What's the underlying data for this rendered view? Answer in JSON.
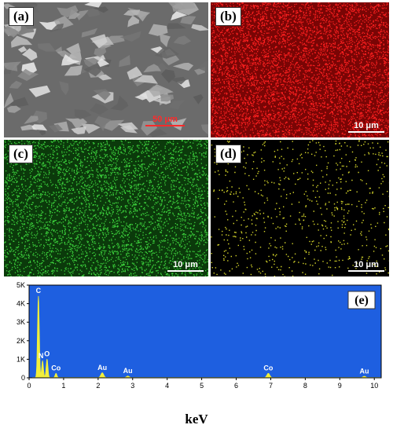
{
  "panels": [
    {
      "tag": "(a)",
      "scale_label": "50 μm",
      "color": "#6b6b6b",
      "dot_color": "#d8d8d8"
    },
    {
      "tag": "(b)",
      "scale_label": "10 μm",
      "color": "#7a0505",
      "dot_color": "#ff2020"
    },
    {
      "tag": "(c)",
      "scale_label": "10 μm",
      "color": "#0b3a0b",
      "dot_color": "#3cd23c"
    },
    {
      "tag": "(d)",
      "scale_label": "10 μm",
      "color": "#000000",
      "dot_color": "#d4d42a"
    }
  ],
  "spectrum": {
    "tag": "(e)",
    "background": "#1e5fe0",
    "bar_color": "#f2ef3a"
  },
  "chart_data": {
    "type": "line",
    "title": "",
    "xlabel": "keV",
    "ylabel": "",
    "xlim": [
      0,
      10.2
    ],
    "ylim": [
      0,
      5000
    ],
    "x_ticks": [
      "0",
      "1",
      "2",
      "3",
      "4",
      "5",
      "6",
      "7",
      "8",
      "9",
      "10"
    ],
    "y_ticks": [
      "0",
      "1K",
      "2K",
      "3K",
      "4K",
      "5K"
    ],
    "peaks": [
      {
        "label": "C",
        "x": 0.27,
        "y": 4400
      },
      {
        "label": "N",
        "x": 0.39,
        "y": 900
      },
      {
        "label": "O",
        "x": 0.52,
        "y": 1000
      },
      {
        "label": "Co",
        "x": 0.78,
        "y": 230
      },
      {
        "label": "Au",
        "x": 2.12,
        "y": 260
      },
      {
        "label": "Au",
        "x": 2.86,
        "y": 80
      },
      {
        "label": "Co",
        "x": 6.93,
        "y": 230
      },
      {
        "label": "Au",
        "x": 9.71,
        "y": 70
      }
    ]
  }
}
